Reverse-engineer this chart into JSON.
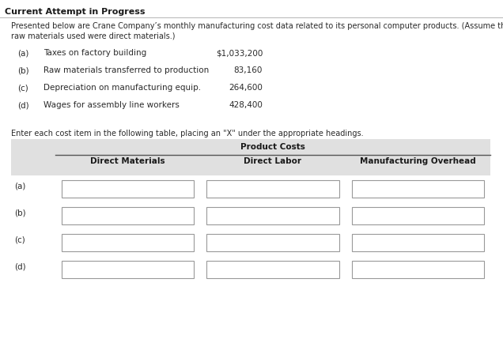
{
  "title": "Current Attempt in Progress",
  "intro_line1": "Presented below are Crane Company’s monthly manufacturing cost data related to its personal computer products. (Assume that all",
  "intro_line2": "raw materials used were direct materials.)",
  "items": [
    {
      "label": "(a)",
      "desc": "Taxes on factory building",
      "amount": "$1,033,200"
    },
    {
      "label": "(b)",
      "desc": "Raw materials transferred to production",
      "amount": "83,160"
    },
    {
      "label": "(c)",
      "desc": "Depreciation on manufacturing equip.",
      "amount": "264,600"
    },
    {
      "label": "(d)",
      "desc": "Wages for assembly line workers",
      "amount": "428,400"
    }
  ],
  "instruction": "Enter each cost item in the following table, placing an \"X\" under the appropriate headings.",
  "table_header_main": "Product Costs",
  "table_col_headers": [
    "Direct Materials",
    "Direct Labor",
    "Manufacturing Overhead"
  ],
  "table_row_labels": [
    "(a)",
    "(b)",
    "(c)",
    "(d)"
  ],
  "bg_color": "#ffffff",
  "header_bg": "#e0e0e0",
  "title_fontsize": 8.0,
  "body_fontsize": 7.5,
  "small_fontsize": 7.0,
  "bold_color": "#1a1a1a",
  "text_color": "#2a2a2a",
  "gray_text": "#444444"
}
